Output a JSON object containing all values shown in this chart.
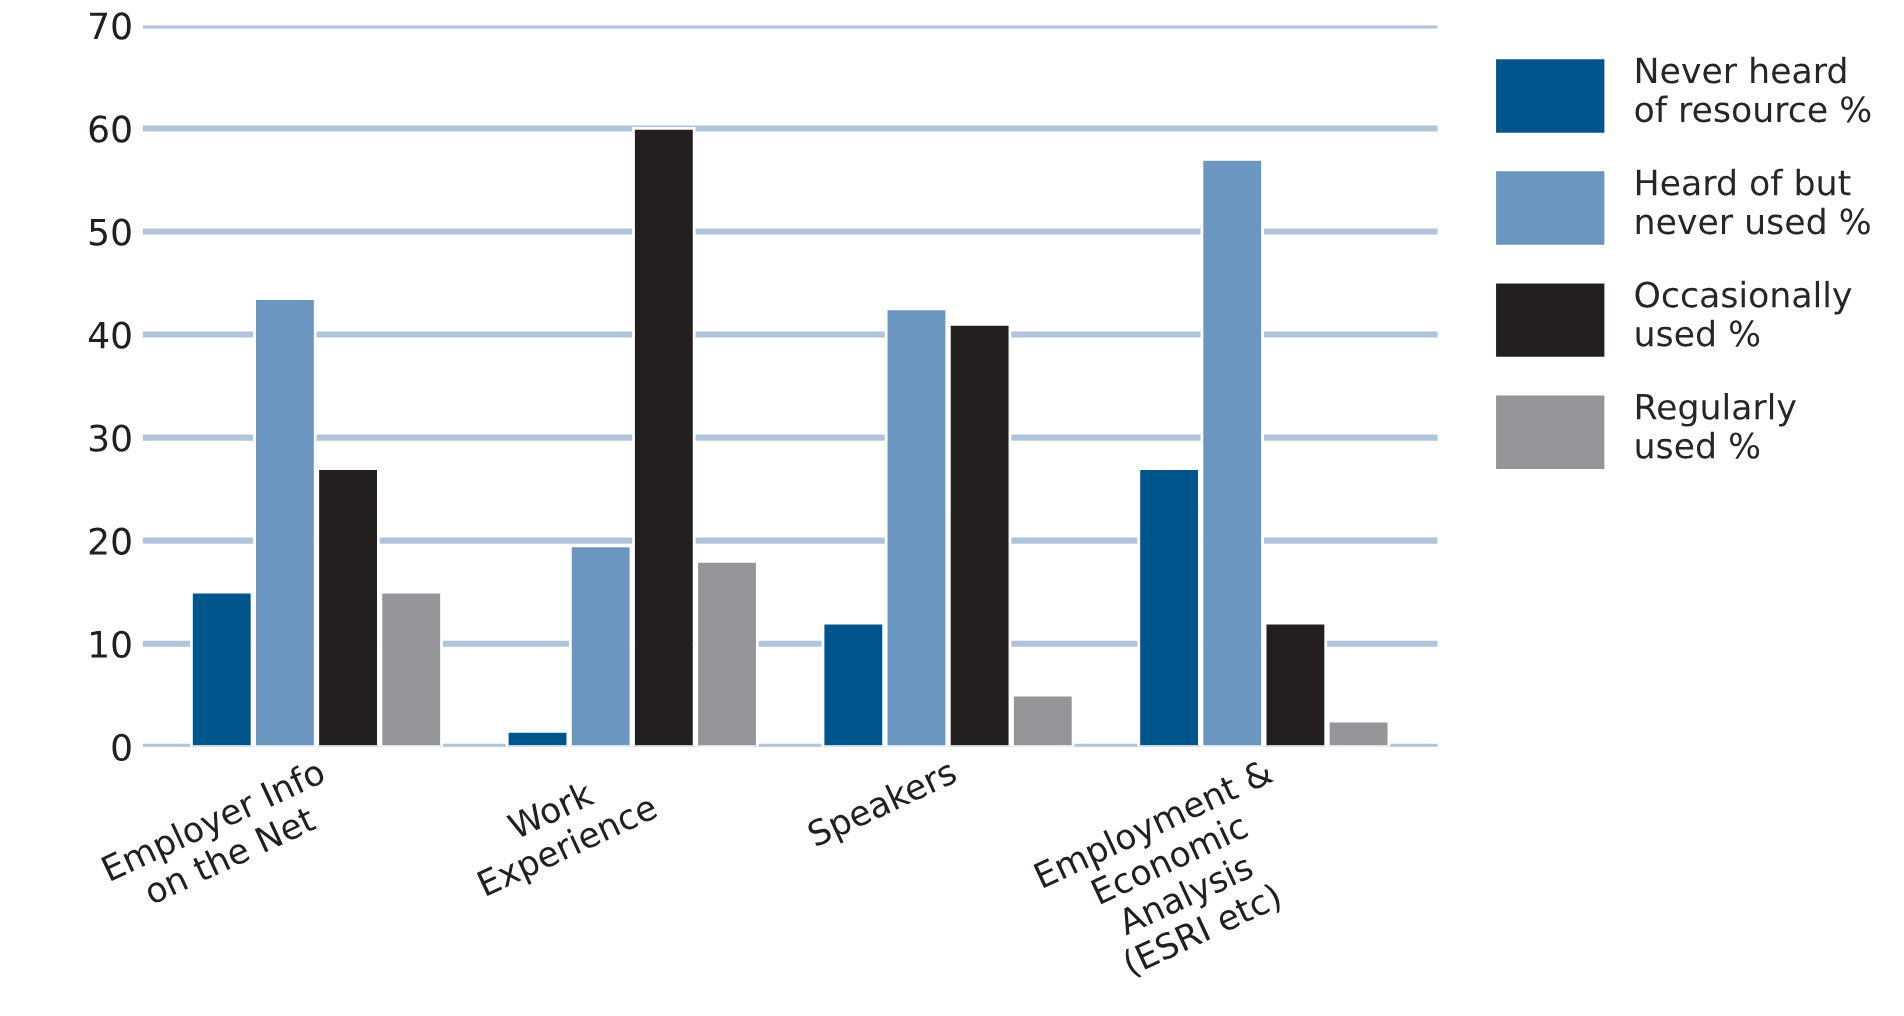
{
  "chart_data": {
    "type": "bar",
    "categories": [
      "Employer Info\non the Net",
      "Work\nExperience",
      "Speakers",
      "Employment &\nEconomic\nAnalysis\n(ESRI etc)"
    ],
    "series": [
      {
        "name": "Never heard\nof resource %",
        "color": "#00568c",
        "values": [
          15,
          1.5,
          12,
          27
        ]
      },
      {
        "name": "Heard of but\nnever used %",
        "color": "#6a96c0",
        "values": [
          43.5,
          19.5,
          42.5,
          57
        ]
      },
      {
        "name": "Occasionally\nused %",
        "color": "#231f20",
        "values": [
          27,
          60,
          41,
          12
        ]
      },
      {
        "name": "Regularly\nused %",
        "color": "#939598",
        "values": [
          15,
          18,
          5,
          2.5
        ]
      }
    ],
    "ylim": [
      0,
      70
    ],
    "yticks": [
      0,
      10,
      20,
      30,
      40,
      50,
      60,
      70
    ],
    "grid": "y",
    "legend": "right"
  }
}
